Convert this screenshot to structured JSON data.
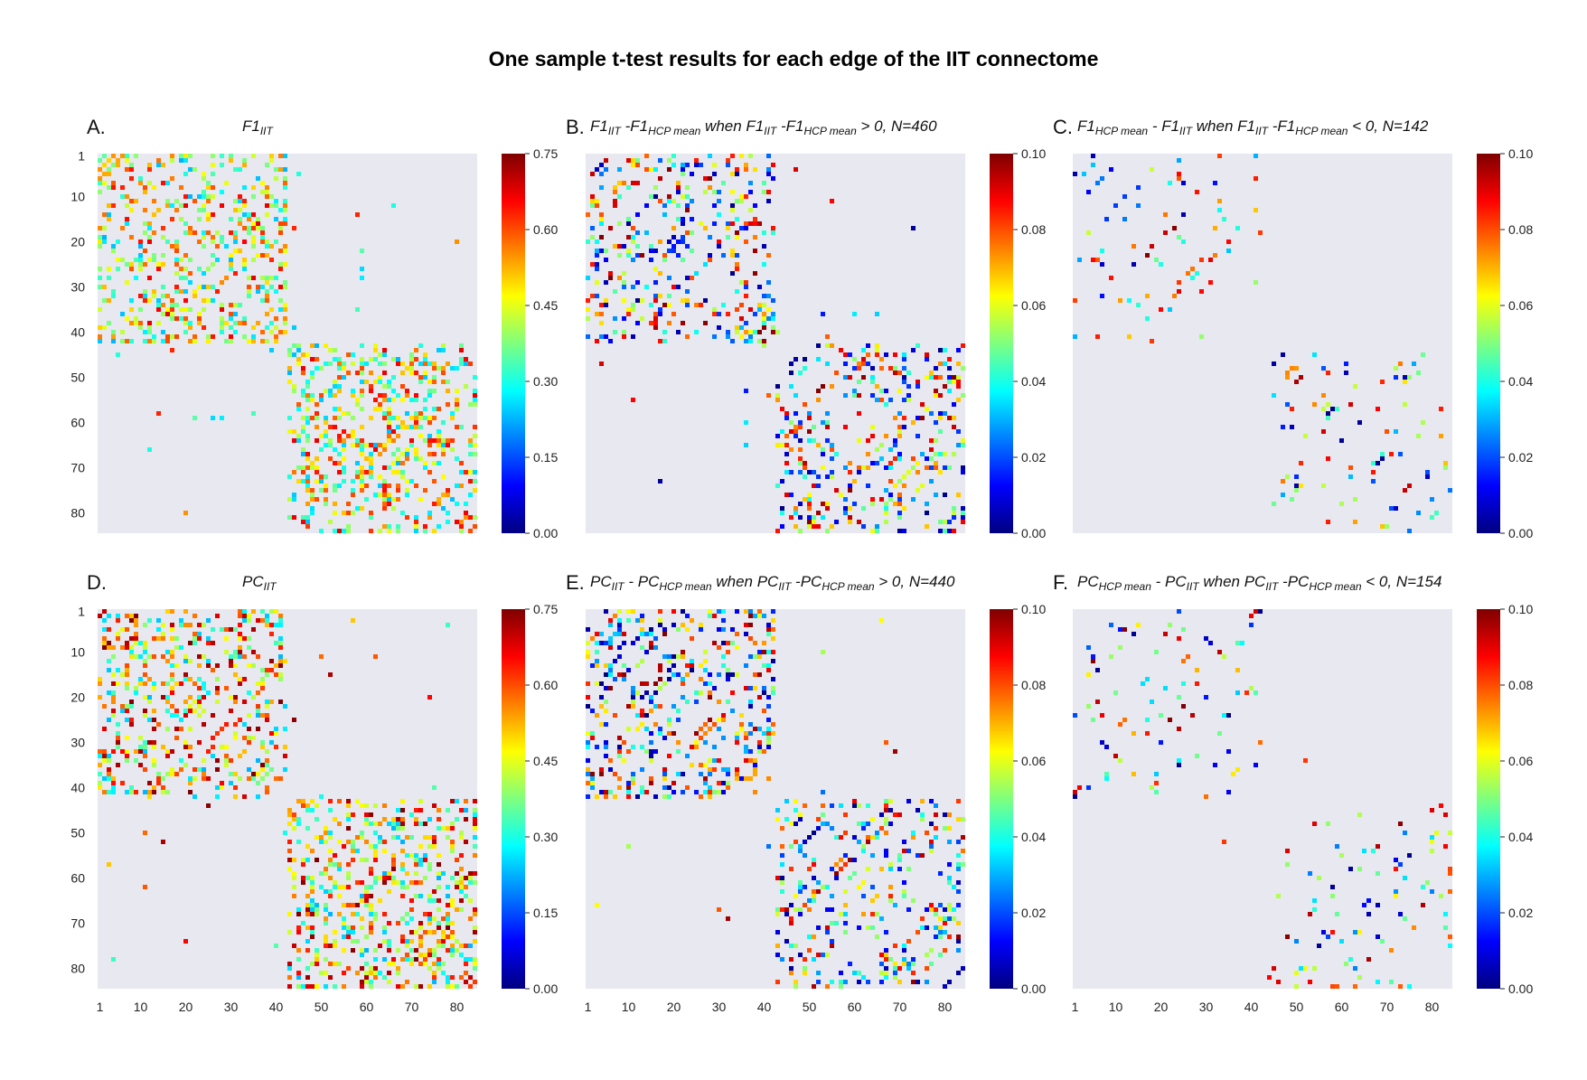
{
  "title": "One sample t-test results for each edge of the IIT connectome",
  "colormap": [
    "#00007f",
    "#0000ff",
    "#007fff",
    "#00ffff",
    "#7fff7f",
    "#ffff00",
    "#ff7f00",
    "#ff0000",
    "#7f0000"
  ],
  "background_color": "#e8e8f0",
  "chart_data": [
    {
      "id": "A",
      "letter": "A.",
      "type": "heatmap",
      "title_parts": [
        {
          "t": "F1"
        },
        {
          "t": "IIT",
          "sub": true
        }
      ],
      "matrix_size": 84,
      "x_ticks": [],
      "y_ticks": [
        "1",
        "10",
        "20",
        "30",
        "40",
        "50",
        "60",
        "70",
        "80"
      ],
      "colorbar": {
        "min": 0.0,
        "max": 0.75,
        "ticks": [
          "0.00",
          "0.15",
          "0.30",
          "0.45",
          "0.60",
          "0.75"
        ]
      },
      "density": 0.3,
      "vmin_frac": 0.3,
      "vmax_frac": 0.9,
      "seed": 11
    },
    {
      "id": "B",
      "letter": "B.",
      "type": "heatmap",
      "title_parts": [
        {
          "t": "F1"
        },
        {
          "t": "IIT",
          "sub": true
        },
        {
          "t": " -F1"
        },
        {
          "t": "HCP mean",
          "sub": true
        },
        {
          "t": " when F1"
        },
        {
          "t": "IIT",
          "sub": true
        },
        {
          "t": " -F1"
        },
        {
          "t": "HCP mean",
          "sub": true
        },
        {
          "t": " > 0, N=460"
        }
      ],
      "matrix_size": 84,
      "x_ticks": [],
      "y_ticks": [],
      "colorbar": {
        "min": 0.0,
        "max": 0.1,
        "ticks": [
          "0.00",
          "0.02",
          "0.04",
          "0.06",
          "0.08",
          "0.10"
        ]
      },
      "density": 0.2,
      "vmin_frac": 0.0,
      "vmax_frac": 1.0,
      "seed": 23
    },
    {
      "id": "C",
      "letter": "C.",
      "type": "heatmap",
      "title_parts": [
        {
          "t": "F1"
        },
        {
          "t": "HCP mean",
          "sub": true
        },
        {
          "t": " - F1"
        },
        {
          "t": "IIT",
          "sub": true
        },
        {
          "t": " when F1"
        },
        {
          "t": "IIT",
          "sub": true
        },
        {
          "t": " -F1"
        },
        {
          "t": "HCP mean",
          "sub": true
        },
        {
          "t": " < 0, N=142"
        }
      ],
      "matrix_size": 84,
      "x_ticks": [],
      "y_ticks": [],
      "colorbar": {
        "min": 0.0,
        "max": 0.1,
        "ticks": [
          "0.00",
          "0.02",
          "0.04",
          "0.06",
          "0.08",
          "0.10"
        ]
      },
      "density": 0.05,
      "vmin_frac": 0.0,
      "vmax_frac": 1.0,
      "seed": 37
    },
    {
      "id": "D",
      "letter": "D.",
      "type": "heatmap",
      "title_parts": [
        {
          "t": "PC"
        },
        {
          "t": "IIT",
          "sub": true
        }
      ],
      "matrix_size": 84,
      "x_ticks": [
        "1",
        "10",
        "20",
        "30",
        "40",
        "50",
        "60",
        "70",
        "80"
      ],
      "y_ticks": [
        "1",
        "10",
        "20",
        "30",
        "40",
        "50",
        "60",
        "70",
        "80"
      ],
      "colorbar": {
        "min": 0.0,
        "max": 0.75,
        "ticks": [
          "0.00",
          "0.15",
          "0.30",
          "0.45",
          "0.60",
          "0.75"
        ]
      },
      "density": 0.3,
      "vmin_frac": 0.3,
      "vmax_frac": 1.0,
      "seed": 51
    },
    {
      "id": "E",
      "letter": "E.",
      "type": "heatmap",
      "title_parts": [
        {
          "t": "PC"
        },
        {
          "t": "IIT",
          "sub": true
        },
        {
          "t": " - PC"
        },
        {
          "t": "HCP mean",
          "sub": true
        },
        {
          "t": " when PC"
        },
        {
          "t": "IIT",
          "sub": true
        },
        {
          "t": " -PC"
        },
        {
          "t": "HCP mean",
          "sub": true
        },
        {
          "t": " > 0, N=440"
        }
      ],
      "matrix_size": 84,
      "x_ticks": [
        "1",
        "10",
        "20",
        "30",
        "40",
        "50",
        "60",
        "70",
        "80"
      ],
      "y_ticks": [],
      "colorbar": {
        "min": 0.0,
        "max": 0.1,
        "ticks": [
          "0.00",
          "0.02",
          "0.04",
          "0.06",
          "0.08",
          "0.10"
        ]
      },
      "density": 0.2,
      "vmin_frac": 0.0,
      "vmax_frac": 1.0,
      "seed": 67
    },
    {
      "id": "F",
      "letter": "F.",
      "type": "heatmap",
      "title_parts": [
        {
          "t": "PC"
        },
        {
          "t": "HCP mean",
          "sub": true
        },
        {
          "t": " - PC"
        },
        {
          "t": "IIT",
          "sub": true
        },
        {
          "t": " when PC"
        },
        {
          "t": "IIT",
          "sub": true
        },
        {
          "t": " -PC"
        },
        {
          "t": "HCP mean",
          "sub": true
        },
        {
          "t": " < 0, N=154"
        }
      ],
      "matrix_size": 84,
      "x_ticks": [
        "1",
        "10",
        "20",
        "30",
        "40",
        "50",
        "60",
        "70",
        "80"
      ],
      "y_ticks": [],
      "colorbar": {
        "min": 0.0,
        "max": 0.1,
        "ticks": [
          "0.00",
          "0.02",
          "0.04",
          "0.06",
          "0.08",
          "0.10"
        ]
      },
      "density": 0.055,
      "vmin_frac": 0.0,
      "vmax_frac": 1.0,
      "seed": 83
    }
  ]
}
